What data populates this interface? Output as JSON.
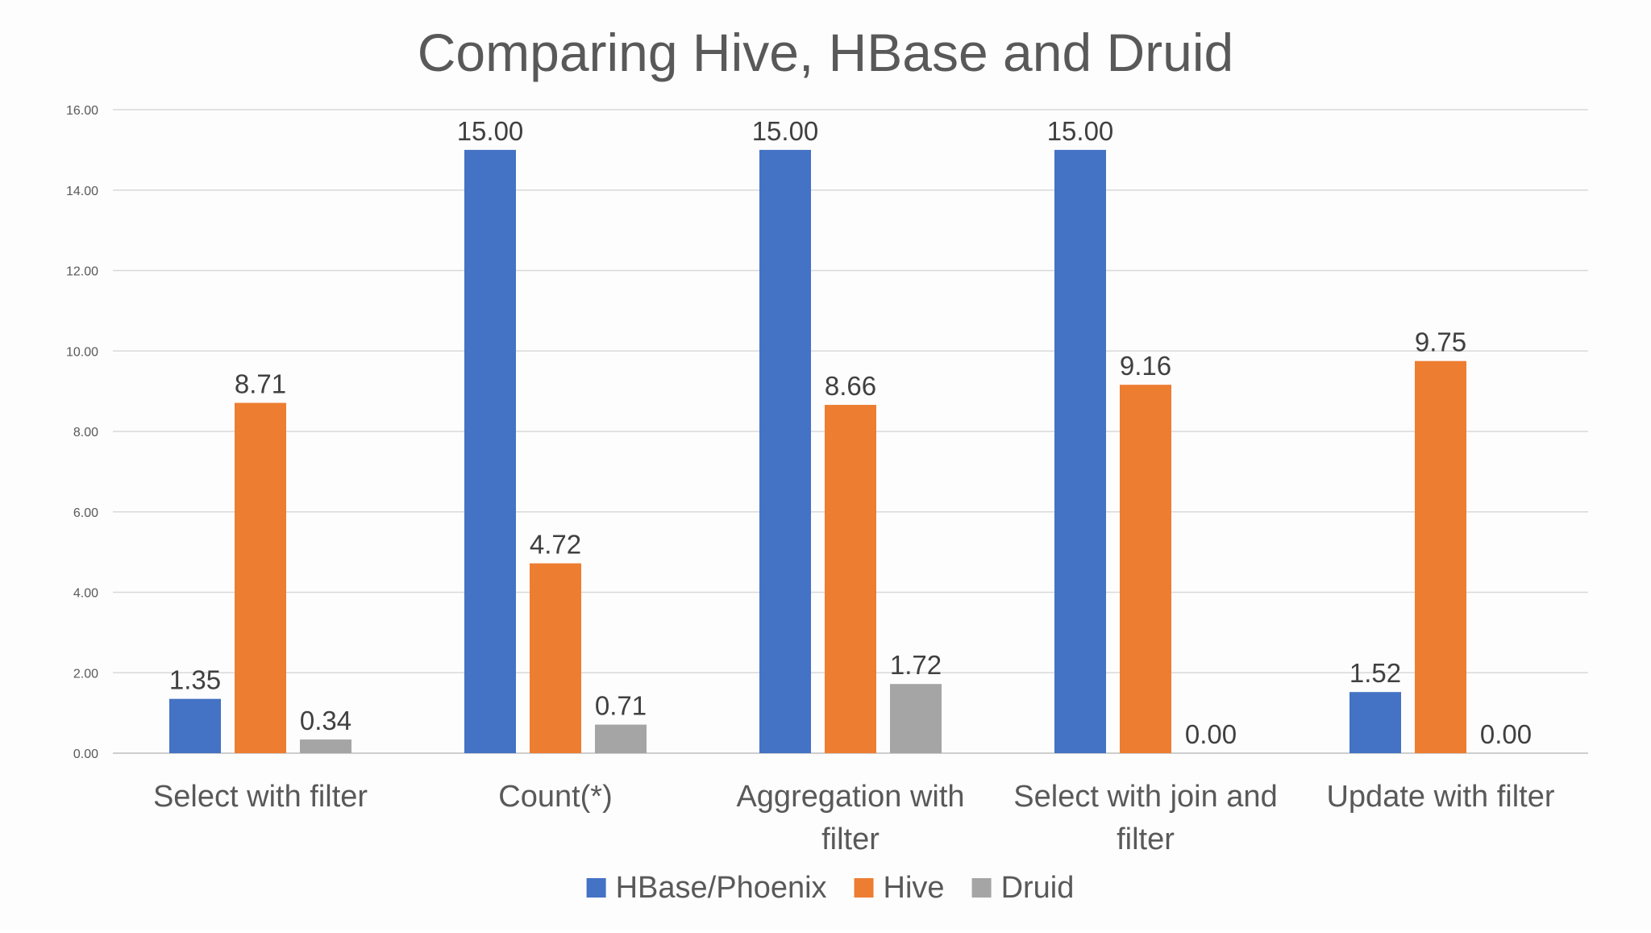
{
  "chart_data": {
    "type": "bar",
    "title": "Comparing Hive, HBase and Druid",
    "xlabel": "",
    "ylabel": "",
    "ylim": [
      0,
      16
    ],
    "yticks": [
      "0.00",
      "2.00",
      "4.00",
      "6.00",
      "8.00",
      "10.00",
      "12.00",
      "14.00",
      "16.00"
    ],
    "grid": true,
    "legend_position": "bottom",
    "categories": [
      [
        "Select with filter"
      ],
      [
        "Count(*)"
      ],
      [
        "Aggregation with",
        "filter"
      ],
      [
        "Select with join and",
        "filter"
      ],
      [
        "Update with filter"
      ]
    ],
    "series": [
      {
        "name": "HBase/Phoenix",
        "color": "#4472c4",
        "values": [
          1.35,
          15.0,
          15.0,
          15.0,
          1.52
        ],
        "labels": [
          "1.35",
          "15.00",
          "15.00",
          "15.00",
          "1.52"
        ]
      },
      {
        "name": "Hive",
        "color": "#ed7d31",
        "values": [
          8.71,
          4.72,
          8.66,
          9.16,
          9.75
        ],
        "labels": [
          "8.71",
          "4.72",
          "8.66",
          "9.16",
          "9.75"
        ]
      },
      {
        "name": "Druid",
        "color": "#a5a5a5",
        "values": [
          0.34,
          0.71,
          1.72,
          0.0,
          0.0
        ],
        "labels": [
          "0.34",
          "0.71",
          "1.72",
          "0.00",
          "0.00"
        ]
      }
    ]
  }
}
